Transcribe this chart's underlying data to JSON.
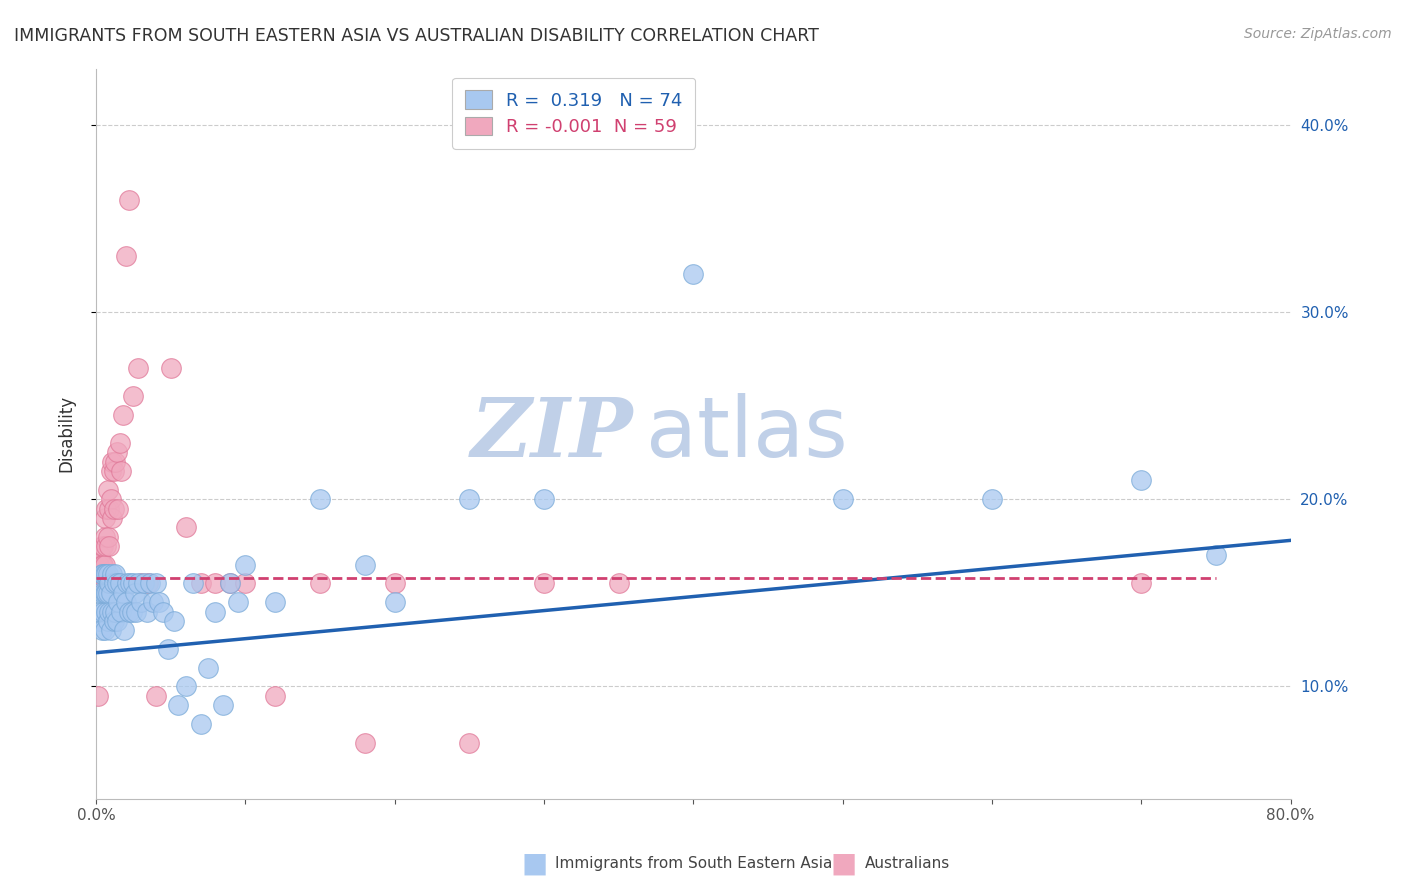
{
  "title": "IMMIGRANTS FROM SOUTH EASTERN ASIA VS AUSTRALIAN DISABILITY CORRELATION CHART",
  "source": "Source: ZipAtlas.com",
  "xlabel_blue": "Immigrants from South Eastern Asia",
  "xlabel_pink": "Australians",
  "ylabel": "Disability",
  "watermark_zip": "ZIP",
  "watermark_atlas": "atlas",
  "legend_blue_r": "0.319",
  "legend_blue_n": "74",
  "legend_pink_r": "-0.001",
  "legend_pink_n": "59",
  "xlim": [
    0.0,
    0.8
  ],
  "ylim": [
    0.04,
    0.43
  ],
  "xticks": [
    0.0,
    0.1,
    0.2,
    0.3,
    0.4,
    0.5,
    0.6,
    0.7,
    0.8
  ],
  "xtick_labels": [
    "0.0%",
    "",
    "",
    "",
    "",
    "",
    "",
    "",
    "80.0%"
  ],
  "yticks": [
    0.1,
    0.2,
    0.3,
    0.4
  ],
  "ytick_labels": [
    "10.0%",
    "20.0%",
    "30.0%",
    "40.0%"
  ],
  "blue_color": "#A8C8F0",
  "pink_color": "#F0A8BE",
  "blue_edge_color": "#7AAAD8",
  "pink_edge_color": "#E07898",
  "blue_line_color": "#2060B0",
  "pink_line_color": "#D04070",
  "title_color": "#333333",
  "source_color": "#999999",
  "grid_color": "#CCCCCC",
  "watermark_zip_color": "#C0D0E8",
  "watermark_atlas_color": "#C0D0E8",
  "blue_scatter_x": [
    0.002,
    0.003,
    0.003,
    0.004,
    0.004,
    0.005,
    0.005,
    0.005,
    0.006,
    0.006,
    0.006,
    0.007,
    0.007,
    0.007,
    0.008,
    0.008,
    0.008,
    0.009,
    0.009,
    0.01,
    0.01,
    0.011,
    0.011,
    0.012,
    0.012,
    0.013,
    0.013,
    0.014,
    0.014,
    0.015,
    0.016,
    0.017,
    0.018,
    0.019,
    0.02,
    0.021,
    0.022,
    0.023,
    0.024,
    0.025,
    0.026,
    0.027,
    0.028,
    0.03,
    0.032,
    0.034,
    0.036,
    0.038,
    0.04,
    0.042,
    0.045,
    0.048,
    0.052,
    0.055,
    0.06,
    0.065,
    0.07,
    0.075,
    0.08,
    0.085,
    0.09,
    0.095,
    0.1,
    0.12,
    0.15,
    0.18,
    0.2,
    0.25,
    0.3,
    0.4,
    0.5,
    0.6,
    0.7,
    0.75
  ],
  "blue_scatter_y": [
    0.135,
    0.14,
    0.15,
    0.13,
    0.16,
    0.14,
    0.15,
    0.16,
    0.13,
    0.15,
    0.16,
    0.14,
    0.15,
    0.16,
    0.135,
    0.15,
    0.16,
    0.14,
    0.155,
    0.13,
    0.15,
    0.14,
    0.16,
    0.135,
    0.155,
    0.14,
    0.16,
    0.135,
    0.155,
    0.145,
    0.155,
    0.14,
    0.15,
    0.13,
    0.145,
    0.155,
    0.14,
    0.155,
    0.14,
    0.155,
    0.15,
    0.14,
    0.155,
    0.145,
    0.155,
    0.14,
    0.155,
    0.145,
    0.155,
    0.145,
    0.14,
    0.12,
    0.135,
    0.09,
    0.1,
    0.155,
    0.08,
    0.11,
    0.14,
    0.09,
    0.155,
    0.145,
    0.165,
    0.145,
    0.2,
    0.165,
    0.145,
    0.2,
    0.2,
    0.32,
    0.2,
    0.2,
    0.21,
    0.17
  ],
  "pink_scatter_x": [
    0.001,
    0.001,
    0.0015,
    0.002,
    0.002,
    0.002,
    0.003,
    0.003,
    0.003,
    0.004,
    0.004,
    0.004,
    0.005,
    0.005,
    0.005,
    0.005,
    0.006,
    0.006,
    0.006,
    0.007,
    0.007,
    0.007,
    0.008,
    0.008,
    0.009,
    0.009,
    0.01,
    0.01,
    0.011,
    0.011,
    0.012,
    0.012,
    0.013,
    0.014,
    0.015,
    0.016,
    0.017,
    0.018,
    0.02,
    0.022,
    0.025,
    0.028,
    0.03,
    0.035,
    0.04,
    0.05,
    0.06,
    0.07,
    0.08,
    0.09,
    0.1,
    0.12,
    0.15,
    0.18,
    0.2,
    0.25,
    0.3,
    0.35,
    0.7
  ],
  "pink_scatter_y": [
    0.155,
    0.095,
    0.155,
    0.155,
    0.165,
    0.155,
    0.16,
    0.17,
    0.155,
    0.165,
    0.155,
    0.175,
    0.155,
    0.165,
    0.175,
    0.155,
    0.165,
    0.18,
    0.19,
    0.155,
    0.175,
    0.195,
    0.18,
    0.205,
    0.175,
    0.195,
    0.2,
    0.215,
    0.19,
    0.22,
    0.195,
    0.215,
    0.22,
    0.225,
    0.195,
    0.23,
    0.215,
    0.245,
    0.33,
    0.36,
    0.255,
    0.27,
    0.155,
    0.155,
    0.095,
    0.27,
    0.185,
    0.155,
    0.155,
    0.155,
    0.155,
    0.095,
    0.155,
    0.07,
    0.155,
    0.07,
    0.155,
    0.155,
    0.155
  ],
  "blue_trend_x": [
    0.0,
    0.8
  ],
  "blue_trend_y": [
    0.118,
    0.178
  ],
  "pink_trend_x": [
    0.0,
    0.75
  ],
  "pink_trend_y": [
    0.158,
    0.158
  ]
}
